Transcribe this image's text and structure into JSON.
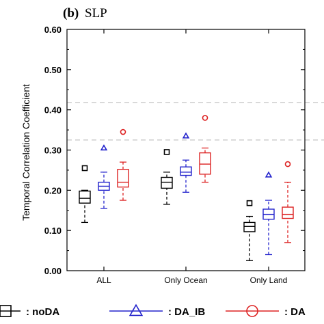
{
  "panel": {
    "tag": "(b)",
    "variable": "SLP"
  },
  "chart_data": {
    "type": "box",
    "ylabel": "Temporal Correlation Coefficient",
    "ylim": [
      0,
      0.6
    ],
    "yticks": [
      "0.00",
      "0.10",
      "0.20",
      "0.30",
      "0.40",
      "0.50",
      "0.60"
    ],
    "ytick_values": [
      0,
      0.1,
      0.2,
      0.3,
      0.4,
      0.5,
      0.6
    ],
    "categories": [
      "ALL",
      "Only Ocean",
      "Only Land"
    ],
    "reference_lines": [
      0.325,
      0.418
    ],
    "reference_line_color": "#c8c8c8",
    "legend_position": "bottom",
    "series": [
      {
        "name": "noDA",
        "color": "#000000",
        "marker": "square",
        "boxes": [
          {
            "whisker_low": 0.12,
            "q1": 0.168,
            "median": 0.18,
            "q3": 0.198,
            "whisker_high": 0.2,
            "outlier": 0.255
          },
          {
            "whisker_low": 0.165,
            "q1": 0.205,
            "median": 0.22,
            "q3": 0.232,
            "whisker_high": 0.245,
            "outlier": 0.295
          },
          {
            "whisker_low": 0.025,
            "q1": 0.097,
            "median": 0.11,
            "q3": 0.12,
            "whisker_high": 0.135,
            "outlier": 0.168
          }
        ]
      },
      {
        "name": "DA_IB",
        "color": "#2222cc",
        "marker": "triangle",
        "boxes": [
          {
            "whisker_low": 0.155,
            "q1": 0.2,
            "median": 0.21,
            "q3": 0.22,
            "whisker_high": 0.245,
            "outlier": 0.305
          },
          {
            "whisker_low": 0.195,
            "q1": 0.237,
            "median": 0.245,
            "q3": 0.258,
            "whisker_high": 0.275,
            "outlier": 0.335
          },
          {
            "whisker_low": 0.04,
            "q1": 0.128,
            "median": 0.14,
            "q3": 0.153,
            "whisker_high": 0.175,
            "outlier": 0.238
          }
        ]
      },
      {
        "name": "DA",
        "color": "#dd2222",
        "marker": "circle",
        "boxes": [
          {
            "whisker_low": 0.175,
            "q1": 0.208,
            "median": 0.22,
            "q3": 0.252,
            "whisker_high": 0.27,
            "outlier": 0.345
          },
          {
            "whisker_low": 0.22,
            "q1": 0.24,
            "median": 0.265,
            "q3": 0.293,
            "whisker_high": 0.305,
            "outlier": 0.38
          },
          {
            "whisker_low": 0.07,
            "q1": 0.13,
            "median": 0.14,
            "q3": 0.158,
            "whisker_high": 0.22,
            "outlier": 0.265
          }
        ]
      }
    ]
  }
}
